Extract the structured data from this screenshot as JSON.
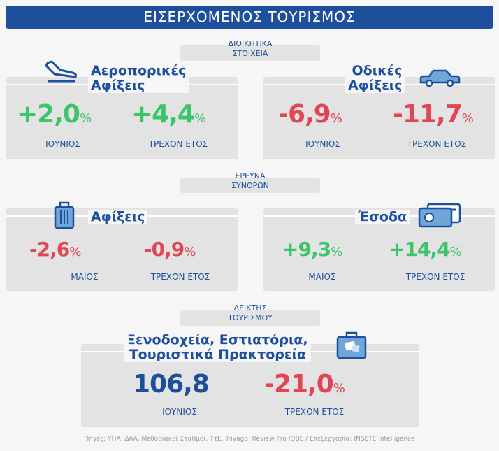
{
  "title": "ΕΙΣΕΡΧΟΜΕΝΟΣ ΤΟΥΡΙΣΜΟΣ",
  "sections": [
    {
      "label_line1": "ΔΙΟΙΚΗΤΙΚΑ",
      "label_line2": "ΣΤΟΙΧΕΙΑ"
    },
    {
      "label_line1": "ΕΡΕΥΝΑ",
      "label_line2": "ΣΥΝΟΡΩΝ"
    },
    {
      "label_line1": "ΔΕΙΚΤΗΣ",
      "label_line2": "ΤΟΥΡΙΣΜΟΥ"
    }
  ],
  "air": {
    "title1": "Αεροπορικές",
    "title2": "Αφίξεις",
    "icon": "airplane-landing-icon",
    "v1": "+2,0",
    "l1": "ΙΟΥΝΙΟΣ",
    "v2": "+4,4",
    "l2": "ΤΡΕΧΟΝ ΕΤΟΣ",
    "unit": "%"
  },
  "road": {
    "title1": "Οδικές",
    "title2": "Αφίξεις",
    "icon": "car-icon",
    "v1": "-6,9",
    "l1": "ΙΟΥΝΙΟΣ",
    "v2": "-11,7",
    "l2": "ΤΡΕΧΟΝ ΕΤΟΣ",
    "unit": "%"
  },
  "arrivals": {
    "title": "Αφίξεις",
    "icon": "suitcase-icon",
    "v1": "-2,6",
    "l1": "ΜΑΙΟΣ",
    "v2": "-0,9",
    "l2": "ΤΡΕΧΟΝ ΕΤΟΣ",
    "unit": "%"
  },
  "receipts": {
    "title": "Έσοδα",
    "icon": "credit-card-icon",
    "v1": "+9,3",
    "l1": "ΜΑΙΟΣ",
    "v2": "+14,4",
    "l2": "ΤΡΕΧΟΝ ΕΤΟΣ",
    "unit": "%"
  },
  "index": {
    "title1": "Ξενοδοχεία, Εστιατόρια,",
    "title2": "Τουριστικά Πρακτορεία",
    "icon": "travel-bag-icon",
    "v1": "106,8",
    "l1": "ΙΟΥΝΙΟΣ",
    "v2": "-21,0",
    "l2": "ΤΡΕΧΟΝ ΕΤΟΣ",
    "unit": "%"
  },
  "colors": {
    "blue": "#1e4f9c",
    "green": "#3cc46b",
    "red": "#e14654"
  },
  "footer": "Πηγές: ΥΠΑ, ΔΑΑ, Μεθοριακοί Σταθμοί, ΤτΕ, Trivago, Review Pro IOBE  /  Επεξεργασία:  INSETE Intelligence"
}
